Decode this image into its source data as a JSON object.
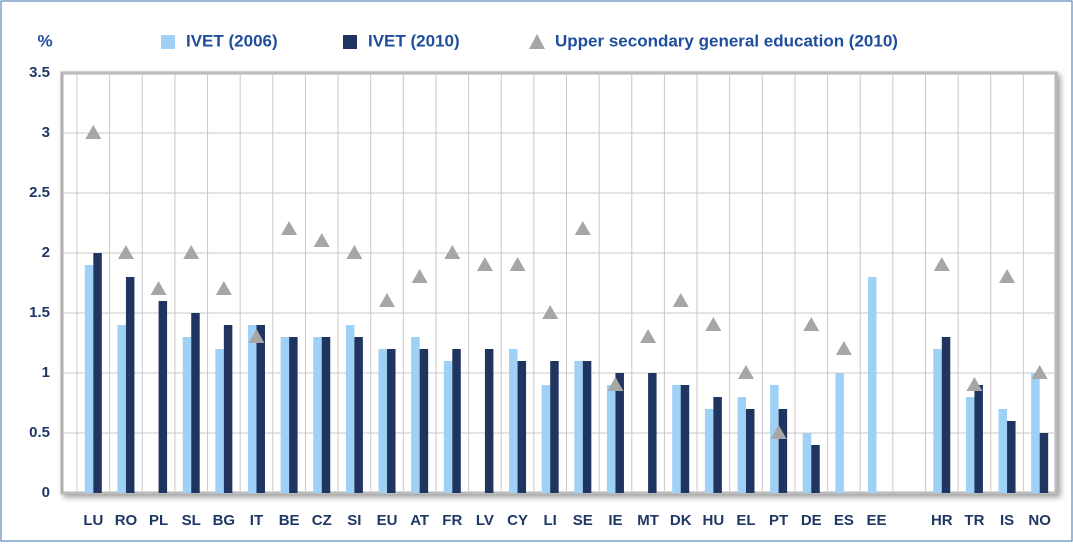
{
  "chart_data": {
    "type": "bar",
    "y_label": "%",
    "categories": [
      "LU",
      "RO",
      "PL",
      "SL",
      "BG",
      "IT",
      "BE",
      "CZ",
      "SI",
      "EU",
      "AT",
      "FR",
      "LV",
      "CY",
      "LI",
      "SE",
      "IE",
      "MT",
      "DK",
      "HU",
      "EL",
      "PT",
      "DE",
      "ES",
      "EE",
      null,
      "HR",
      "TR",
      "IS",
      "NO"
    ],
    "series": [
      {
        "name": "IVET (2006)",
        "color": "#9fd0f5",
        "mark": "bar",
        "values": [
          1.9,
          1.4,
          null,
          1.3,
          1.2,
          1.4,
          1.3,
          1.3,
          1.4,
          1.2,
          1.3,
          1.1,
          null,
          1.2,
          0.9,
          1.1,
          0.9,
          null,
          0.9,
          0.7,
          0.8,
          0.9,
          0.5,
          1.0,
          1.8,
          null,
          1.2,
          0.8,
          0.7,
          1.0
        ]
      },
      {
        "name": "IVET (2010)",
        "color": "#1f3560",
        "mark": "bar",
        "values": [
          2.0,
          1.8,
          1.6,
          1.5,
          1.4,
          1.4,
          1.3,
          1.3,
          1.3,
          1.2,
          1.2,
          1.2,
          1.2,
          1.1,
          1.1,
          1.1,
          1.0,
          1.0,
          0.9,
          0.8,
          0.7,
          0.7,
          0.4,
          null,
          null,
          null,
          1.3,
          0.9,
          0.6,
          0.5
        ]
      },
      {
        "name": "Upper secondary general education (2010)",
        "color": "#a6a6a6",
        "mark": "triangle",
        "values": [
          3.0,
          2.0,
          1.7,
          2.0,
          1.7,
          1.3,
          2.2,
          2.1,
          2.0,
          1.6,
          1.8,
          2.0,
          1.9,
          1.9,
          1.5,
          2.2,
          0.9,
          1.3,
          1.6,
          1.4,
          1.0,
          0.5,
          1.4,
          1.2,
          null,
          null,
          1.9,
          0.9,
          1.8,
          1.0
        ]
      }
    ],
    "ylim": [
      0,
      3.5
    ],
    "yticks": [
      0,
      0.5,
      1,
      1.5,
      2,
      2.5,
      3,
      3.5
    ],
    "grid": true
  }
}
